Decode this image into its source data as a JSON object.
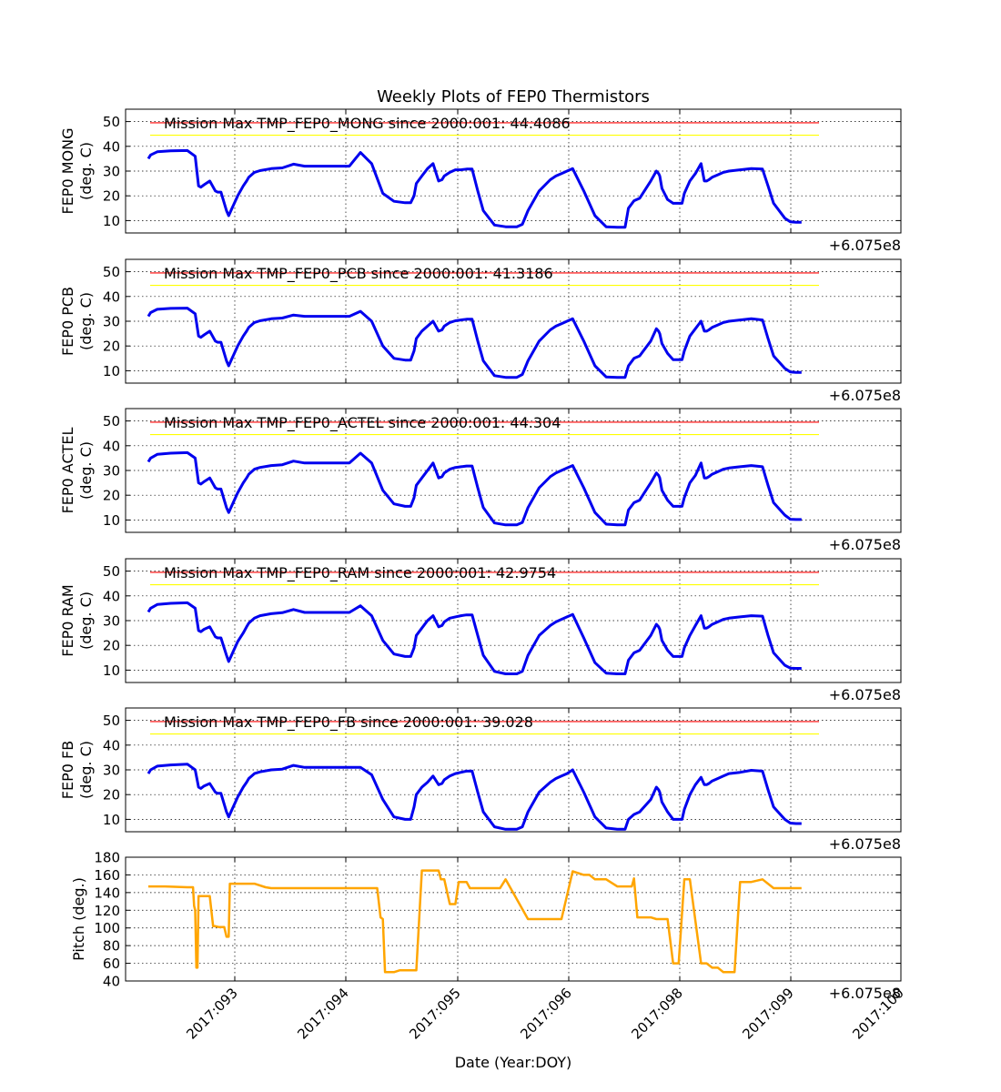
{
  "title": "Weekly Plots of FEP0 Thermistors",
  "offset_label": "+6.075e8",
  "xlabel": "Date (Year:DOY)",
  "x_tick_labels": [
    "2017:093",
    "2017:094",
    "2017:095",
    "2017:096",
    "2017:098",
    "2017:099",
    "2017:100"
  ],
  "colors": {
    "temp_line": "#0000ee",
    "pitch_line": "#ffa500",
    "limit_red": "#ff0000",
    "limit_yellow": "#ffff00"
  },
  "chart_data": [
    {
      "type": "line",
      "ylabel_1": "FEP0 MONG",
      "ylabel_2": "(deg. C)",
      "annotation": "Mission Max TMP_FEP0_MONG since 2000:001: 44.4086",
      "ylim": [
        5,
        55
      ],
      "yticks": [
        10,
        20,
        30,
        40,
        50
      ],
      "red_limit": 49.5,
      "yellow_limit": 44.5,
      "x": [
        0,
        0.02,
        0.08,
        0.2,
        0.35,
        0.42,
        0.45,
        0.47,
        0.5,
        0.55,
        0.6,
        0.62,
        0.65,
        0.7,
        0.72,
        0.75,
        0.8,
        0.85,
        0.88,
        0.9,
        0.95,
        1.0,
        1.1,
        1.2,
        1.3,
        1.4,
        1.5,
        1.55,
        1.6,
        1.7,
        1.8,
        1.9,
        2.0,
        2.1,
        2.2,
        2.3,
        2.33,
        2.35,
        2.38,
        2.4,
        2.45,
        2.5,
        2.55,
        2.6,
        2.63,
        2.65,
        2.7,
        2.75,
        2.8,
        2.85,
        2.87,
        2.9,
        2.95,
        3.0,
        3.1,
        3.2,
        3.3,
        3.35,
        3.4,
        3.5,
        3.6,
        3.65,
        3.7,
        3.75,
        3.8,
        3.9,
        4.0,
        4.1,
        4.2,
        4.27,
        4.3,
        4.35,
        4.4,
        4.5,
        4.55,
        4.57,
        4.58,
        4.6,
        4.65,
        4.7,
        4.75,
        4.78,
        4.8,
        4.85,
        4.9,
        4.95,
        4.98,
        5.0,
        5.02,
        5.05,
        5.1,
        5.15,
        5.2,
        5.3,
        5.4,
        5.5,
        5.55,
        5.6,
        5.7,
        5.75,
        5.8,
        5.85
      ],
      "values": [
        35,
        36.5,
        37.8,
        38.2,
        38.3,
        36,
        24,
        23.5,
        24.5,
        26,
        22,
        21.5,
        21.5,
        14,
        12,
        15,
        20,
        24,
        26,
        27.5,
        29.5,
        30.2,
        31,
        31.3,
        32.8,
        32,
        32,
        32,
        32,
        32,
        32,
        37.5,
        33,
        21,
        17.8,
        17.2,
        17.2,
        17.2,
        20,
        25,
        28,
        31,
        33,
        26,
        26.5,
        28,
        29.5,
        30.5,
        30.5,
        30.8,
        30.8,
        30.8,
        22,
        14,
        8.2,
        7.5,
        7.5,
        8.5,
        14,
        22,
        26.5,
        28,
        29,
        30,
        31,
        22,
        12,
        7.5,
        7.3,
        7.3,
        15,
        18,
        19,
        26,
        30,
        29,
        28,
        23,
        18.5,
        17,
        17,
        17,
        21,
        26,
        29,
        33,
        26,
        26,
        26.5,
        27.5,
        28.5,
        29.5,
        30,
        30.5,
        31,
        30.8,
        24,
        17,
        11,
        9.5,
        9.3,
        9.3
      ]
    },
    {
      "type": "line",
      "ylabel_1": "FEP0 PCB",
      "ylabel_2": "(deg. C)",
      "annotation": "Mission Max TMP_FEP0_PCB since 2000:001: 41.3186",
      "ylim": [
        5,
        55
      ],
      "yticks": [
        10,
        20,
        30,
        40,
        50
      ],
      "red_limit": 49.5,
      "yellow_limit": 44.5,
      "x": [
        0,
        0.02,
        0.08,
        0.2,
        0.35,
        0.42,
        0.45,
        0.47,
        0.5,
        0.55,
        0.6,
        0.62,
        0.65,
        0.7,
        0.72,
        0.75,
        0.8,
        0.85,
        0.88,
        0.9,
        0.95,
        1.0,
        1.1,
        1.2,
        1.3,
        1.4,
        1.5,
        1.55,
        1.6,
        1.7,
        1.8,
        1.9,
        2.0,
        2.1,
        2.2,
        2.3,
        2.33,
        2.35,
        2.38,
        2.4,
        2.45,
        2.5,
        2.55,
        2.6,
        2.63,
        2.65,
        2.7,
        2.75,
        2.8,
        2.85,
        2.87,
        2.9,
        2.95,
        3.0,
        3.1,
        3.2,
        3.3,
        3.35,
        3.4,
        3.5,
        3.6,
        3.65,
        3.7,
        3.75,
        3.8,
        3.9,
        4.0,
        4.1,
        4.2,
        4.27,
        4.3,
        4.35,
        4.4,
        4.5,
        4.55,
        4.57,
        4.58,
        4.6,
        4.65,
        4.7,
        4.75,
        4.78,
        4.8,
        4.85,
        4.9,
        4.95,
        4.98,
        5.0,
        5.02,
        5.05,
        5.1,
        5.15,
        5.2,
        5.3,
        5.4,
        5.5,
        5.55,
        5.6,
        5.7,
        5.75,
        5.8,
        5.85
      ],
      "values": [
        32,
        33.5,
        34.8,
        35.2,
        35.3,
        33,
        24,
        23.5,
        24.5,
        26,
        22,
        21.5,
        21.5,
        14,
        12,
        15,
        20,
        24,
        26,
        27.5,
        29.5,
        30.2,
        31,
        31.3,
        32.5,
        32,
        32,
        32,
        32,
        32,
        32,
        34,
        30,
        20,
        15,
        14.3,
        14.3,
        14.3,
        18,
        23,
        26,
        28,
        30,
        26,
        26.5,
        28,
        29.5,
        30.2,
        30.5,
        30.8,
        30.8,
        30.8,
        22,
        14,
        8,
        7.3,
        7.3,
        8.5,
        14,
        22,
        26.5,
        28,
        29,
        30,
        31,
        22,
        12,
        7.5,
        7.3,
        7.3,
        12,
        15,
        16,
        22,
        27,
        26,
        25,
        21,
        17,
        14.5,
        14.5,
        14.5,
        18,
        24,
        27,
        30,
        26,
        26,
        26.5,
        27.5,
        28.5,
        29.5,
        30,
        30.5,
        31,
        30.5,
        23,
        16,
        11,
        9.5,
        9.3,
        9.3
      ]
    },
    {
      "type": "line",
      "ylabel_1": "FEP0 ACTEL",
      "ylabel_2": "(deg. C)",
      "annotation": "Mission Max TMP_FEP0_ACTEL since 2000:001: 44.304",
      "ylim": [
        5,
        55
      ],
      "yticks": [
        10,
        20,
        30,
        40,
        50
      ],
      "red_limit": 49.5,
      "yellow_limit": 44.5,
      "x": [
        0,
        0.02,
        0.08,
        0.2,
        0.35,
        0.42,
        0.45,
        0.47,
        0.5,
        0.55,
        0.6,
        0.62,
        0.65,
        0.7,
        0.72,
        0.75,
        0.8,
        0.85,
        0.88,
        0.9,
        0.95,
        1.0,
        1.1,
        1.2,
        1.3,
        1.4,
        1.5,
        1.55,
        1.6,
        1.7,
        1.8,
        1.9,
        2.0,
        2.1,
        2.2,
        2.3,
        2.33,
        2.35,
        2.38,
        2.4,
        2.45,
        2.5,
        2.55,
        2.6,
        2.63,
        2.65,
        2.7,
        2.75,
        2.8,
        2.85,
        2.87,
        2.9,
        2.95,
        3.0,
        3.1,
        3.2,
        3.3,
        3.35,
        3.4,
        3.5,
        3.6,
        3.65,
        3.7,
        3.75,
        3.8,
        3.9,
        4.0,
        4.1,
        4.2,
        4.27,
        4.3,
        4.35,
        4.4,
        4.5,
        4.55,
        4.57,
        4.58,
        4.6,
        4.65,
        4.7,
        4.75,
        4.78,
        4.8,
        4.85,
        4.9,
        4.95,
        4.98,
        5.0,
        5.02,
        5.05,
        5.1,
        5.15,
        5.2,
        5.3,
        5.4,
        5.5,
        5.55,
        5.6,
        5.7,
        5.75,
        5.8,
        5.85
      ],
      "values": [
        33.5,
        35,
        36.5,
        37,
        37.2,
        35,
        25,
        24.5,
        25.5,
        27,
        23,
        22.5,
        22.5,
        15,
        13,
        16,
        21,
        25,
        27,
        28.5,
        30.5,
        31.2,
        32,
        32.3,
        33.8,
        33,
        33,
        33,
        33,
        33,
        33,
        37,
        33,
        22,
        16.5,
        15.5,
        15.5,
        15.5,
        19,
        24,
        27,
        30,
        33,
        27,
        27.5,
        29,
        30.5,
        31.2,
        31.5,
        31.8,
        31.8,
        31.8,
        23,
        15,
        8.8,
        8,
        8,
        9,
        15,
        23,
        27.5,
        29,
        30,
        31,
        32,
        23,
        13,
        8.3,
        8,
        8,
        14,
        17,
        18,
        25,
        29,
        28,
        27,
        22,
        18,
        15.5,
        15.5,
        15.5,
        19,
        25,
        28,
        33,
        27,
        27,
        27.5,
        28.5,
        29.5,
        30.5,
        31,
        31.5,
        32,
        31.5,
        24,
        17,
        12,
        10.3,
        10.2,
        10.2
      ]
    },
    {
      "type": "line",
      "ylabel_1": "FEP0 RAM",
      "ylabel_2": "(deg. C)",
      "annotation": "Mission Max TMP_FEP0_RAM since 2000:001: 42.9754",
      "ylim": [
        5,
        55
      ],
      "yticks": [
        10,
        20,
        30,
        40,
        50
      ],
      "red_limit": 49.5,
      "yellow_limit": 44.5,
      "x": [
        0,
        0.02,
        0.08,
        0.2,
        0.35,
        0.42,
        0.45,
        0.47,
        0.5,
        0.55,
        0.6,
        0.62,
        0.65,
        0.7,
        0.72,
        0.75,
        0.8,
        0.85,
        0.88,
        0.9,
        0.95,
        1.0,
        1.1,
        1.2,
        1.3,
        1.4,
        1.5,
        1.55,
        1.6,
        1.7,
        1.8,
        1.9,
        2.0,
        2.1,
        2.2,
        2.3,
        2.33,
        2.35,
        2.38,
        2.4,
        2.45,
        2.5,
        2.55,
        2.6,
        2.63,
        2.65,
        2.7,
        2.75,
        2.8,
        2.85,
        2.87,
        2.9,
        2.95,
        3.0,
        3.1,
        3.2,
        3.3,
        3.35,
        3.4,
        3.5,
        3.6,
        3.65,
        3.7,
        3.75,
        3.8,
        3.9,
        4.0,
        4.1,
        4.2,
        4.27,
        4.3,
        4.35,
        4.4,
        4.5,
        4.55,
        4.57,
        4.58,
        4.6,
        4.65,
        4.7,
        4.75,
        4.78,
        4.8,
        4.85,
        4.9,
        4.95,
        4.98,
        5.0,
        5.02,
        5.05,
        5.1,
        5.15,
        5.2,
        5.3,
        5.4,
        5.5,
        5.55,
        5.6,
        5.7,
        5.75,
        5.8,
        5.85
      ],
      "values": [
        33.5,
        35,
        36.5,
        37,
        37.2,
        35,
        26,
        25.5,
        26.5,
        27.5,
        23.5,
        23,
        23,
        16,
        13.5,
        16.5,
        21.5,
        25,
        27.5,
        29,
        31,
        32,
        32.8,
        33.2,
        34.5,
        33.3,
        33.3,
        33.3,
        33.3,
        33.3,
        33.3,
        36,
        32,
        22,
        16.5,
        15.5,
        15.5,
        15.5,
        19,
        24,
        27,
        30,
        32,
        27.5,
        28,
        29.5,
        31,
        31.5,
        32,
        32.3,
        32.3,
        32.3,
        24,
        16,
        9.5,
        8.5,
        8.5,
        9.5,
        16,
        24,
        28,
        29.5,
        30.5,
        31.5,
        32.5,
        23,
        13,
        8.8,
        8.5,
        8.5,
        14,
        17,
        18,
        24,
        28.5,
        27.5,
        26.5,
        22,
        18,
        15.5,
        15.5,
        15.5,
        19,
        24,
        28,
        32,
        27,
        27,
        27.5,
        28.5,
        29.5,
        30.5,
        31,
        31.5,
        32,
        31.8,
        24,
        17,
        12,
        10.8,
        10.7,
        10.7
      ]
    },
    {
      "type": "line",
      "ylabel_1": "FEP0 FB",
      "ylabel_2": "(deg. C)",
      "annotation": "Mission Max TMP_FEP0_FB since 2000:001: 39.028",
      "ylim": [
        5,
        55
      ],
      "yticks": [
        10,
        20,
        30,
        40,
        50
      ],
      "red_limit": 49.5,
      "yellow_limit": 44.5,
      "x": [
        0,
        0.02,
        0.08,
        0.2,
        0.35,
        0.42,
        0.45,
        0.47,
        0.5,
        0.55,
        0.6,
        0.62,
        0.65,
        0.7,
        0.72,
        0.75,
        0.8,
        0.85,
        0.88,
        0.9,
        0.95,
        1.0,
        1.1,
        1.2,
        1.3,
        1.4,
        1.5,
        1.55,
        1.6,
        1.7,
        1.8,
        1.9,
        2.0,
        2.1,
        2.2,
        2.3,
        2.33,
        2.35,
        2.38,
        2.4,
        2.45,
        2.5,
        2.55,
        2.6,
        2.63,
        2.65,
        2.7,
        2.75,
        2.8,
        2.85,
        2.87,
        2.9,
        2.95,
        3.0,
        3.1,
        3.2,
        3.3,
        3.35,
        3.4,
        3.5,
        3.6,
        3.65,
        3.7,
        3.75,
        3.8,
        3.9,
        4.0,
        4.1,
        4.2,
        4.27,
        4.3,
        4.35,
        4.4,
        4.5,
        4.55,
        4.57,
        4.58,
        4.6,
        4.65,
        4.7,
        4.75,
        4.78,
        4.8,
        4.85,
        4.9,
        4.95,
        4.98,
        5.0,
        5.02,
        5.05,
        5.1,
        5.15,
        5.2,
        5.3,
        5.4,
        5.5,
        5.55,
        5.6,
        5.7,
        5.75,
        5.8,
        5.85
      ],
      "values": [
        28.5,
        30,
        31.5,
        32,
        32.3,
        30,
        23,
        22.5,
        23.5,
        24.5,
        21,
        20.5,
        20.5,
        13,
        11,
        14,
        19,
        23,
        25,
        26.5,
        28.5,
        29.2,
        30,
        30.3,
        31.8,
        31,
        31,
        31,
        31,
        31,
        31,
        31,
        28,
        18,
        11,
        10,
        10,
        10,
        15,
        20,
        23,
        25,
        27.5,
        24,
        24.5,
        26,
        27.5,
        28.5,
        29,
        29.5,
        29.5,
        29.5,
        21,
        13,
        7,
        6,
        6,
        7,
        13,
        21,
        25,
        26.5,
        27.5,
        28.5,
        30,
        21,
        11,
        6.5,
        6,
        6,
        10,
        12,
        13,
        18,
        23,
        22,
        21,
        17,
        13,
        10,
        10,
        10,
        14,
        20,
        24,
        27,
        24,
        24,
        24.5,
        25.5,
        26.5,
        27.5,
        28.5,
        29,
        29.8,
        29.5,
        22,
        15,
        10,
        8.5,
        8.3,
        8.3
      ]
    },
    {
      "type": "line",
      "ylabel_1": "Pitch (deg.)",
      "ylabel_2": "",
      "annotation": "",
      "ylim": [
        40,
        180
      ],
      "yticks": [
        40,
        60,
        80,
        100,
        120,
        140,
        160,
        180
      ],
      "x": [
        0,
        0.15,
        0.35,
        0.4,
        0.41,
        0.42,
        0.43,
        0.44,
        0.45,
        0.47,
        0.5,
        0.55,
        0.58,
        0.6,
        0.63,
        0.68,
        0.7,
        0.72,
        0.73,
        0.75,
        0.78,
        0.85,
        0.95,
        1.05,
        1.1,
        1.15,
        1.2,
        1.3,
        1.5,
        1.7,
        1.9,
        2.05,
        2.08,
        2.1,
        2.12,
        2.15,
        2.2,
        2.25,
        2.3,
        2.35,
        2.4,
        2.45,
        2.5,
        2.55,
        2.58,
        2.6,
        2.62,
        2.65,
        2.7,
        2.75,
        2.78,
        2.8,
        2.82,
        2.85,
        2.88,
        2.9,
        2.95,
        3.0,
        3.05,
        3.15,
        3.2,
        3.4,
        3.45,
        3.5,
        3.55,
        3.6,
        3.7,
        3.8,
        3.9,
        3.95,
        4.0,
        4.1,
        4.2,
        4.25,
        4.3,
        4.33,
        4.35,
        4.38,
        4.4,
        4.45,
        4.48,
        4.5,
        4.55,
        4.6,
        4.62,
        4.65,
        4.7,
        4.75,
        4.8,
        4.85,
        4.95,
        5.0,
        5.05,
        5.1,
        5.15,
        5.2,
        5.25,
        5.3,
        5.35,
        5.4,
        5.5,
        5.6,
        5.7,
        5.85
      ],
      "values": [
        147,
        147,
        146,
        146,
        125,
        120,
        55,
        55,
        136,
        136,
        136,
        136,
        102,
        102,
        101,
        101,
        90,
        90,
        150,
        150,
        150,
        150,
        150,
        146,
        145,
        145,
        145,
        145,
        145,
        145,
        145,
        145,
        112,
        110,
        50,
        50,
        50,
        52,
        52,
        52,
        52,
        165,
        165,
        165,
        165,
        165,
        155,
        155,
        127,
        127,
        152,
        152,
        152,
        152,
        145,
        145,
        145,
        145,
        145,
        145,
        155,
        110,
        110,
        110,
        110,
        110,
        110,
        164,
        160,
        160,
        155,
        155,
        147,
        147,
        147,
        147,
        156,
        112,
        112,
        112,
        112,
        112,
        110,
        110,
        110,
        110,
        60,
        60,
        155,
        155,
        60,
        60,
        55,
        55,
        50,
        50,
        50,
        152,
        152,
        152,
        155,
        145,
        145,
        145
      ]
    }
  ]
}
